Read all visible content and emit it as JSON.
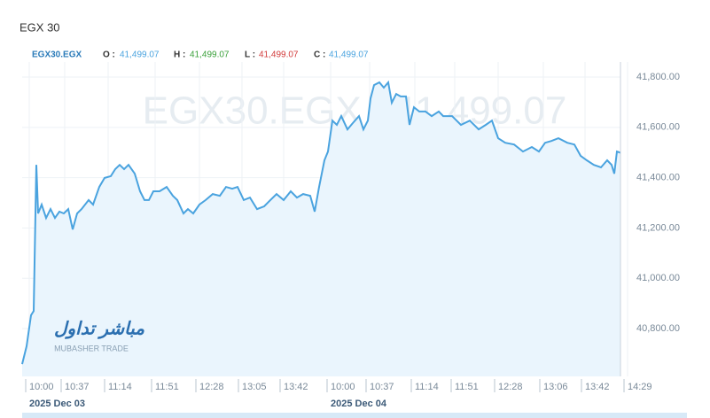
{
  "chart_data": {
    "type": "line",
    "title": "EGX 30",
    "legend": {
      "symbol": "EGX30.EGX",
      "open_label": "O :",
      "open": "41,499.07",
      "high_label": "H :",
      "high": "41,499.07",
      "low_label": "L :",
      "low": "41,499.07",
      "close_label": "C :",
      "close": "41,499.07"
    },
    "watermark": "EGX30.EGX | 41,499.07",
    "logo": {
      "arabic": "مباشر تداول",
      "latin": "MUBASHER TRADE"
    },
    "series": [
      {
        "name": "EGX30.EGX",
        "color": "#4aa3df",
        "x": [
          0,
          5,
          10,
          13,
          16,
          18,
          22,
          27,
          32,
          37,
          42,
          47,
          52,
          57,
          62,
          67,
          75,
          80,
          87,
          93,
          100,
          105,
          110,
          115,
          120,
          127,
          133,
          138,
          143,
          148,
          155,
          163,
          170,
          175,
          182,
          187,
          193,
          200,
          207,
          215,
          223,
          230,
          237,
          243,
          250,
          257,
          265,
          273,
          280,
          287,
          295,
          303,
          310,
          317,
          325,
          330,
          335,
          341,
          345,
          350,
          355,
          360,
          367,
          373,
          380,
          385,
          390,
          393,
          397,
          403,
          408,
          413,
          417,
          422,
          427,
          433,
          437,
          442,
          448,
          455,
          462,
          470,
          475,
          485,
          495,
          505,
          515,
          523,
          530,
          537,
          545,
          555,
          565,
          575,
          583,
          590,
          597,
          605,
          615,
          623,
          630,
          637,
          645,
          653,
          660,
          665,
          668,
          671,
          675
        ],
        "values": [
          40659,
          40730,
          40853,
          40870,
          41451,
          41258,
          41293,
          41240,
          41275,
          41240,
          41265,
          41258,
          41275,
          41194,
          41258,
          41275,
          41311,
          41293,
          41363,
          41399,
          41406,
          41434,
          41451,
          41434,
          41451,
          41416,
          41346,
          41311,
          41311,
          41346,
          41346,
          41363,
          41328,
          41311,
          41258,
          41275,
          41258,
          41293,
          41311,
          41335,
          41328,
          41363,
          41356,
          41363,
          41311,
          41321,
          41275,
          41286,
          41311,
          41335,
          41311,
          41346,
          41321,
          41335,
          41328,
          41265,
          41363,
          41469,
          41504,
          41627,
          41610,
          41645,
          41592,
          41617,
          41645,
          41592,
          41627,
          41715,
          41768,
          41779,
          41758,
          41779,
          41698,
          41733,
          41723,
          41723,
          41610,
          41680,
          41663,
          41663,
          41645,
          41663,
          41645,
          41645,
          41610,
          41627,
          41592,
          41610,
          41627,
          41557,
          41539,
          41532,
          41504,
          41522,
          41504,
          41539,
          41546,
          41557,
          41539,
          41532,
          41487,
          41469,
          41451,
          41441,
          41469,
          41451,
          41416,
          41504,
          41499
        ]
      }
    ],
    "xlim": [
      0,
      675
    ],
    "xticks": [
      {
        "value": 8,
        "label": "10:00"
      },
      {
        "value": 48,
        "label": "10:37"
      },
      {
        "value": 97,
        "label": "11:14"
      },
      {
        "value": 150,
        "label": "11:51"
      },
      {
        "value": 200,
        "label": "12:28"
      },
      {
        "value": 248,
        "label": "13:05"
      },
      {
        "value": 295,
        "label": "13:42"
      },
      {
        "value": 348,
        "label": "10:00"
      },
      {
        "value": 392,
        "label": "10:37"
      },
      {
        "value": 443,
        "label": "11:14"
      },
      {
        "value": 488,
        "label": "11:51"
      },
      {
        "value": 537,
        "label": "12:28"
      },
      {
        "value": 588,
        "label": "13:06"
      },
      {
        "value": 635,
        "label": "13:42"
      },
      {
        "value": 683,
        "label": "14:29"
      }
    ],
    "dates": [
      {
        "value": 8,
        "label": "2025 Dec 03"
      },
      {
        "value": 348,
        "label": "2025 Dec 04"
      }
    ],
    "ylim": [
      40610,
      41860
    ],
    "yticks": [
      {
        "value": 40800,
        "label": "40,800.00"
      },
      {
        "value": 41000,
        "label": "41,000.00"
      },
      {
        "value": 41200,
        "label": "41,200.00"
      },
      {
        "value": 41400,
        "label": "41,400.00"
      },
      {
        "value": 41600,
        "label": "41,600.00"
      },
      {
        "value": 41800,
        "label": "41,800.00"
      }
    ],
    "grid": true
  }
}
